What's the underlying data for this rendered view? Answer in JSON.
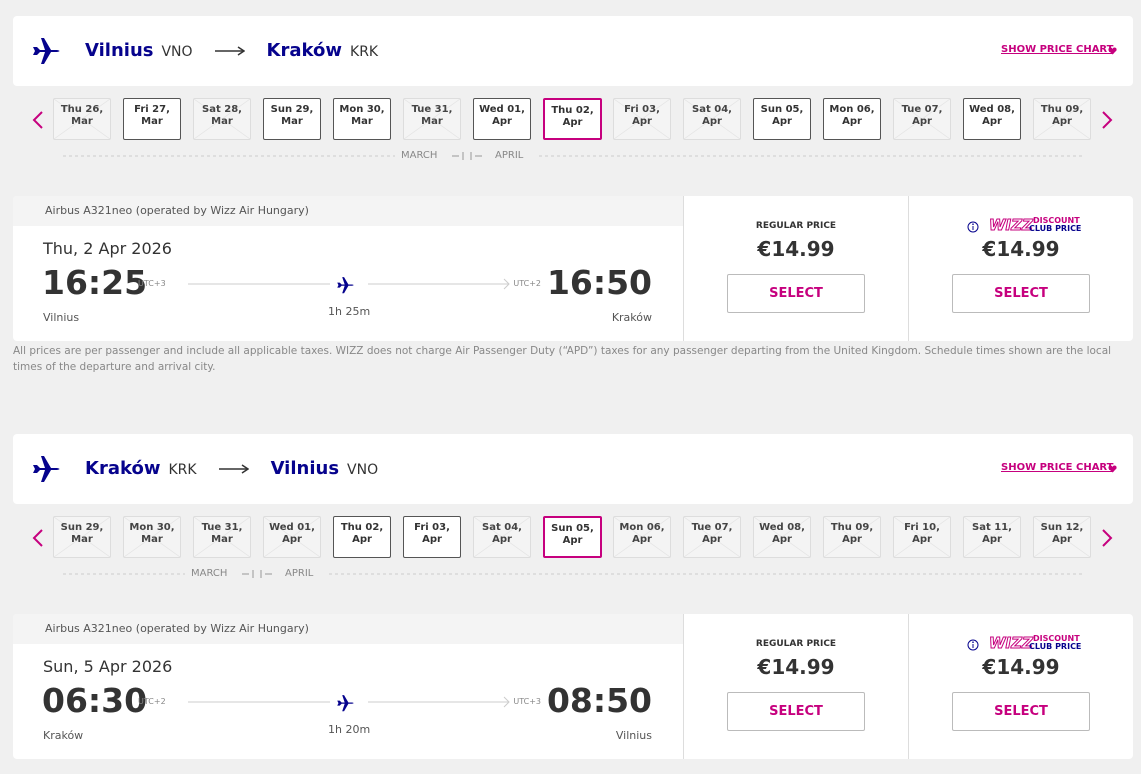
{
  "legs": [
    {
      "from": {
        "city": "Vilnius",
        "code": "VNO"
      },
      "to": {
        "city": "Kraków",
        "code": "KRK"
      },
      "show_price_chart": "SHOW PRICE CHART",
      "months": [
        "MARCH",
        "APRIL"
      ],
      "dates": [
        {
          "day": "Thu 26,",
          "month": "Mar",
          "available": false,
          "selected": false
        },
        {
          "day": "Fri 27,",
          "month": "Mar",
          "available": true,
          "selected": false
        },
        {
          "day": "Sat 28,",
          "month": "Mar",
          "available": false,
          "selected": false
        },
        {
          "day": "Sun 29,",
          "month": "Mar",
          "available": true,
          "selected": false
        },
        {
          "day": "Mon 30,",
          "month": "Mar",
          "available": true,
          "selected": false
        },
        {
          "day": "Tue 31,",
          "month": "Mar",
          "available": false,
          "selected": false
        },
        {
          "day": "Wed 01,",
          "month": "Apr",
          "available": true,
          "selected": false
        },
        {
          "day": "Thu 02,",
          "month": "Apr",
          "available": true,
          "selected": true
        },
        {
          "day": "Fri 03,",
          "month": "Apr",
          "available": false,
          "selected": false
        },
        {
          "day": "Sat 04,",
          "month": "Apr",
          "available": false,
          "selected": false
        },
        {
          "day": "Sun 05,",
          "month": "Apr",
          "available": true,
          "selected": false
        },
        {
          "day": "Mon 06,",
          "month": "Apr",
          "available": true,
          "selected": false
        },
        {
          "day": "Tue 07,",
          "month": "Apr",
          "available": false,
          "selected": false
        },
        {
          "day": "Wed 08,",
          "month": "Apr",
          "available": true,
          "selected": false
        },
        {
          "day": "Thu 09,",
          "month": "Apr",
          "available": false,
          "selected": false
        }
      ],
      "flight": {
        "aircraft": "Airbus A321neo (operated by Wizz Air Hungary)",
        "date": "Thu, 2 Apr 2026",
        "departure_time": "16:25",
        "departure_utc": "UTC+3",
        "arrival_utc": "UTC+2",
        "arrival_time": "16:50",
        "duration": "1h 25m",
        "departure_city": "Vilnius",
        "arrival_city": "Kraków"
      },
      "fares": {
        "regular": {
          "label": "REGULAR PRICE",
          "price": "€14.99",
          "button": "SELECT"
        },
        "discount": {
          "logo": "WIZZ",
          "label_1": "DISCOUNT",
          "label_2": "CLUB PRICE",
          "price": "€14.99",
          "button": "SELECT"
        }
      }
    },
    {
      "from": {
        "city": "Kraków",
        "code": "KRK"
      },
      "to": {
        "city": "Vilnius",
        "code": "VNO"
      },
      "show_price_chart": "SHOW PRICE CHART",
      "months": [
        "MARCH",
        "APRIL"
      ],
      "dates": [
        {
          "day": "Sun 29,",
          "month": "Mar",
          "available": false,
          "selected": false
        },
        {
          "day": "Mon 30,",
          "month": "Mar",
          "available": false,
          "selected": false
        },
        {
          "day": "Tue 31,",
          "month": "Mar",
          "available": false,
          "selected": false
        },
        {
          "day": "Wed 01,",
          "month": "Apr",
          "available": false,
          "selected": false
        },
        {
          "day": "Thu 02,",
          "month": "Apr",
          "available": true,
          "selected": false
        },
        {
          "day": "Fri 03,",
          "month": "Apr",
          "available": true,
          "selected": false
        },
        {
          "day": "Sat 04,",
          "month": "Apr",
          "available": false,
          "selected": false
        },
        {
          "day": "Sun 05,",
          "month": "Apr",
          "available": true,
          "selected": true
        },
        {
          "day": "Mon 06,",
          "month": "Apr",
          "available": false,
          "selected": false
        },
        {
          "day": "Tue 07,",
          "month": "Apr",
          "available": false,
          "selected": false
        },
        {
          "day": "Wed 08,",
          "month": "Apr",
          "available": false,
          "selected": false
        },
        {
          "day": "Thu 09,",
          "month": "Apr",
          "available": false,
          "selected": false
        },
        {
          "day": "Fri 10,",
          "month": "Apr",
          "available": false,
          "selected": false
        },
        {
          "day": "Sat 11,",
          "month": "Apr",
          "available": false,
          "selected": false
        },
        {
          "day": "Sun 12,",
          "month": "Apr",
          "available": false,
          "selected": false
        }
      ],
      "flight": {
        "aircraft": "Airbus A321neo (operated by Wizz Air Hungary)",
        "date": "Sun, 5 Apr 2026",
        "departure_time": "06:30",
        "departure_utc": "UTC+2",
        "arrival_utc": "UTC+3",
        "arrival_time": "08:50",
        "duration": "1h 20m",
        "departure_city": "Kraków",
        "arrival_city": "Vilnius"
      },
      "fares": {
        "regular": {
          "label": "REGULAR PRICE",
          "price": "€14.99",
          "button": "SELECT"
        },
        "discount": {
          "logo": "WIZZ",
          "label_1": "DISCOUNT",
          "label_2": "CLUB PRICE",
          "price": "€14.99",
          "button": "SELECT"
        }
      }
    }
  ],
  "disclaimer": "All prices are per passenger and include all applicable taxes. WIZZ does not charge Air Passenger Duty (“APD”) taxes for any passenger departing from the United Kingdom. Schedule times shown are the local times of the departure and arrival city."
}
